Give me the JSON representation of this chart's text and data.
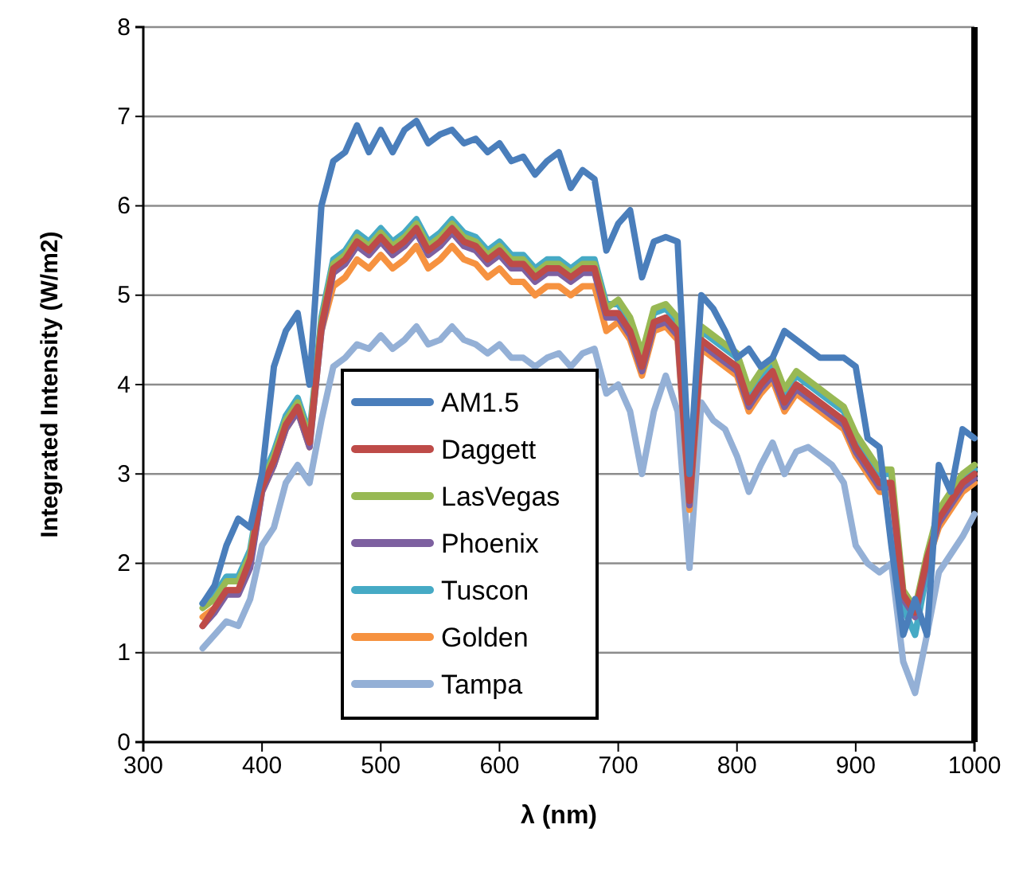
{
  "chart_data": {
    "type": "line",
    "xlabel": "λ (nm)",
    "ylabel": "Integrated Intensity (W/m2)",
    "x": [
      350,
      360,
      370,
      380,
      390,
      400,
      410,
      420,
      430,
      440,
      450,
      460,
      470,
      480,
      490,
      500,
      510,
      520,
      530,
      540,
      550,
      560,
      570,
      580,
      590,
      600,
      610,
      620,
      630,
      640,
      650,
      660,
      670,
      680,
      690,
      700,
      710,
      720,
      730,
      740,
      750,
      760,
      770,
      780,
      790,
      800,
      810,
      820,
      830,
      840,
      850,
      860,
      870,
      880,
      890,
      900,
      910,
      920,
      930,
      940,
      950,
      960,
      970,
      980,
      990,
      1000
    ],
    "xlim": [
      300,
      1000
    ],
    "xticks": [
      300,
      400,
      500,
      600,
      700,
      800,
      900,
      1000
    ],
    "ylim": [
      0,
      8
    ],
    "yticks": [
      0,
      1,
      2,
      3,
      4,
      5,
      6,
      7,
      8
    ],
    "grid": "y",
    "legend": "bottom left",
    "marker": "none",
    "line_style": "solid",
    "series": [
      {
        "name": "AM1.5",
        "color": "#4a7ebb",
        "values": [
          1.55,
          1.75,
          2.2,
          2.5,
          2.4,
          3.0,
          4.2,
          4.6,
          4.8,
          4.0,
          6.0,
          6.5,
          6.6,
          6.9,
          6.6,
          6.85,
          6.6,
          6.85,
          6.95,
          6.7,
          6.8,
          6.85,
          6.7,
          6.75,
          6.6,
          6.7,
          6.5,
          6.55,
          6.35,
          6.5,
          6.6,
          6.2,
          6.4,
          6.3,
          5.5,
          5.8,
          5.95,
          5.2,
          5.6,
          5.65,
          5.6,
          3.0,
          5.0,
          4.85,
          4.6,
          4.3,
          4.4,
          4.2,
          4.3,
          4.6,
          4.5,
          4.4,
          4.3,
          4.3,
          4.3,
          4.2,
          3.4,
          3.3,
          2.2,
          1.2,
          1.6,
          1.2,
          3.1,
          2.8,
          3.5,
          3.4
        ]
      },
      {
        "name": "Daggett",
        "color": "#be4b48",
        "values": [
          1.3,
          1.5,
          1.7,
          1.7,
          2.05,
          2.85,
          3.15,
          3.55,
          3.75,
          3.35,
          4.65,
          5.3,
          5.4,
          5.6,
          5.5,
          5.65,
          5.5,
          5.6,
          5.75,
          5.5,
          5.6,
          5.75,
          5.6,
          5.55,
          5.4,
          5.5,
          5.35,
          5.35,
          5.2,
          5.3,
          5.3,
          5.2,
          5.3,
          5.3,
          4.8,
          4.8,
          4.6,
          4.2,
          4.7,
          4.75,
          4.6,
          2.7,
          4.5,
          4.4,
          4.3,
          4.2,
          3.8,
          4.0,
          4.15,
          3.8,
          4.0,
          3.9,
          3.8,
          3.7,
          3.6,
          3.3,
          3.1,
          2.9,
          2.9,
          1.65,
          1.45,
          2.05,
          2.5,
          2.7,
          2.9,
          3.0
        ]
      },
      {
        "name": "LasVegas",
        "color": "#98b954",
        "values": [
          1.5,
          1.6,
          1.8,
          1.8,
          2.1,
          2.9,
          3.2,
          3.6,
          3.8,
          3.4,
          4.7,
          5.35,
          5.45,
          5.65,
          5.55,
          5.7,
          5.55,
          5.65,
          5.8,
          5.55,
          5.65,
          5.8,
          5.65,
          5.6,
          5.45,
          5.55,
          5.4,
          5.4,
          5.25,
          5.35,
          5.35,
          5.25,
          5.35,
          5.35,
          4.85,
          4.95,
          4.75,
          4.35,
          4.85,
          4.9,
          4.75,
          2.85,
          4.65,
          4.55,
          4.45,
          4.35,
          3.95,
          4.15,
          4.3,
          3.95,
          4.15,
          4.05,
          3.95,
          3.85,
          3.75,
          3.45,
          3.25,
          3.05,
          3.05,
          1.7,
          1.5,
          2.1,
          2.6,
          2.8,
          3.0,
          3.1
        ]
      },
      {
        "name": "Phoenix",
        "color": "#7d60a0",
        "values": [
          1.3,
          1.45,
          1.65,
          1.65,
          1.95,
          2.8,
          3.1,
          3.5,
          3.7,
          3.3,
          4.6,
          5.25,
          5.35,
          5.55,
          5.45,
          5.6,
          5.45,
          5.55,
          5.7,
          5.45,
          5.55,
          5.7,
          5.55,
          5.5,
          5.35,
          5.45,
          5.3,
          5.3,
          5.15,
          5.25,
          5.25,
          5.15,
          5.25,
          5.25,
          4.75,
          4.75,
          4.55,
          4.15,
          4.65,
          4.7,
          4.55,
          2.65,
          4.45,
          4.35,
          4.25,
          4.15,
          3.75,
          3.95,
          4.1,
          3.75,
          3.95,
          3.85,
          3.75,
          3.65,
          3.55,
          3.25,
          3.05,
          2.85,
          2.85,
          1.6,
          1.4,
          2.0,
          2.45,
          2.65,
          2.85,
          2.95
        ]
      },
      {
        "name": "Tuscon",
        "color": "#46aac5",
        "values": [
          1.55,
          1.65,
          1.85,
          1.85,
          2.15,
          2.95,
          3.25,
          3.65,
          3.85,
          3.45,
          4.75,
          5.4,
          5.5,
          5.7,
          5.6,
          5.75,
          5.6,
          5.7,
          5.85,
          5.6,
          5.7,
          5.85,
          5.7,
          5.65,
          5.5,
          5.6,
          5.45,
          5.45,
          5.3,
          5.4,
          5.4,
          5.3,
          5.4,
          5.4,
          4.9,
          4.9,
          4.7,
          4.3,
          4.8,
          4.85,
          4.7,
          2.8,
          4.6,
          4.5,
          4.4,
          4.3,
          3.9,
          4.1,
          4.25,
          3.9,
          4.1,
          4.0,
          3.9,
          3.8,
          3.7,
          3.4,
          3.2,
          3.0,
          3.0,
          1.5,
          1.2,
          1.9,
          2.5,
          2.75,
          2.95,
          3.05
        ]
      },
      {
        "name": "Golden",
        "color": "#f69240",
        "values": [
          1.4,
          1.5,
          1.7,
          1.7,
          2.0,
          2.8,
          3.1,
          3.5,
          3.7,
          3.3,
          4.6,
          5.1,
          5.2,
          5.4,
          5.3,
          5.45,
          5.3,
          5.4,
          5.55,
          5.3,
          5.4,
          5.55,
          5.4,
          5.35,
          5.2,
          5.3,
          5.15,
          5.15,
          5.0,
          5.1,
          5.1,
          5.0,
          5.1,
          5.1,
          4.6,
          4.7,
          4.5,
          4.1,
          4.6,
          4.65,
          4.5,
          2.6,
          4.4,
          4.3,
          4.2,
          4.1,
          3.7,
          3.9,
          4.05,
          3.7,
          3.9,
          3.8,
          3.7,
          3.6,
          3.5,
          3.2,
          3.0,
          2.8,
          2.8,
          1.6,
          1.4,
          2.0,
          2.4,
          2.6,
          2.8,
          2.9
        ]
      },
      {
        "name": "Tampa",
        "color": "#94b0d6",
        "values": [
          1.05,
          1.2,
          1.35,
          1.3,
          1.6,
          2.2,
          2.4,
          2.9,
          3.1,
          2.9,
          3.6,
          4.2,
          4.3,
          4.45,
          4.4,
          4.55,
          4.4,
          4.5,
          4.65,
          4.45,
          4.5,
          4.65,
          4.5,
          4.45,
          4.35,
          4.45,
          4.3,
          4.3,
          4.2,
          4.3,
          4.35,
          4.2,
          4.35,
          4.4,
          3.9,
          4.0,
          3.7,
          3.0,
          3.7,
          4.1,
          3.7,
          1.95,
          3.8,
          3.6,
          3.5,
          3.2,
          2.8,
          3.1,
          3.35,
          3.0,
          3.25,
          3.3,
          3.2,
          3.1,
          2.9,
          2.2,
          2.0,
          1.9,
          2.0,
          0.9,
          0.55,
          1.2,
          1.9,
          2.1,
          2.3,
          2.55
        ]
      }
    ]
  }
}
